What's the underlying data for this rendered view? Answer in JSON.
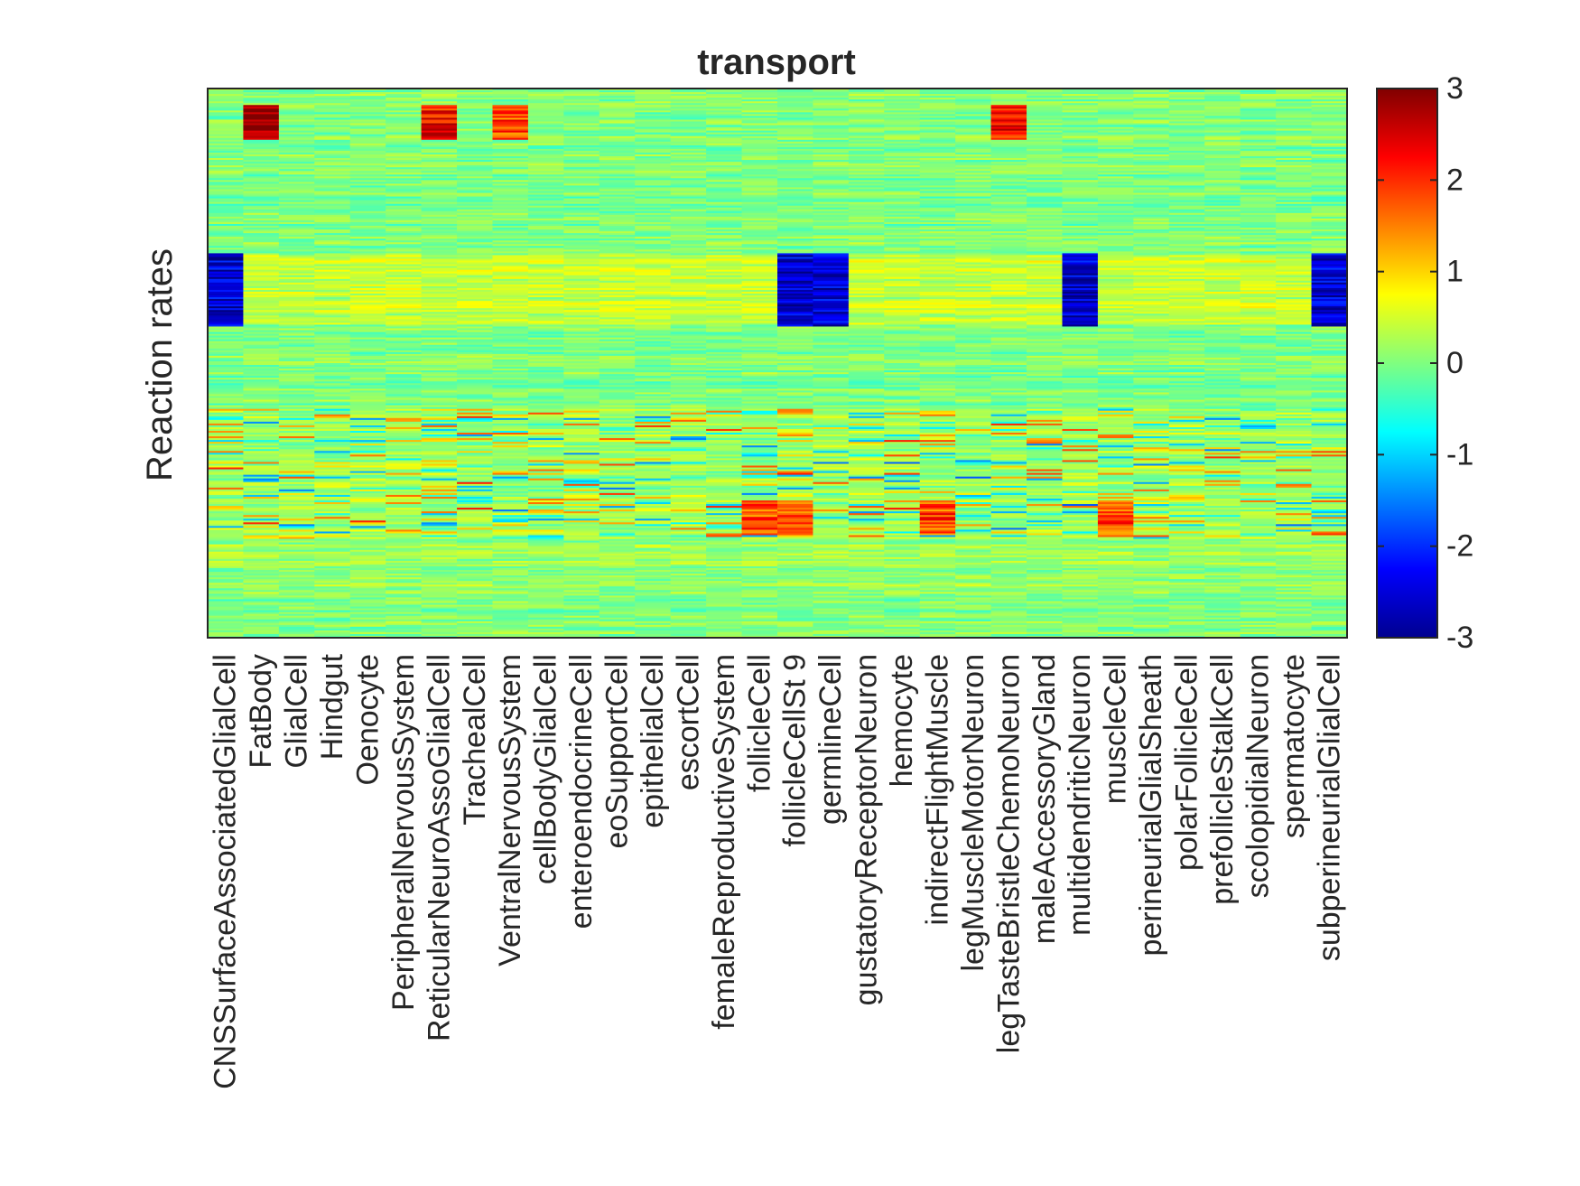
{
  "chart_data": {
    "type": "heatmap",
    "title": "transport",
    "xlabel": "",
    "ylabel": "Reaction rates",
    "categories": [
      "CNSSurfaceAssociatedGlialCell",
      "FatBody",
      "GlialCell",
      "Hindgut",
      "Oenocyte",
      "PeripheralNervousSystem",
      "ReticularNeuroAssoGlialCell",
      "TrachealCell",
      "VentralNervousSystem",
      "cellBodyGlialCell",
      "enteroendocrineCell",
      "eoSupportCell",
      "epithelialCell",
      "escortCell",
      "femaleReproductiveSystem",
      "follicleCell",
      "follicleCellSt 9",
      "germlineCell",
      "gustatoryReceptorNeuron",
      "hemocyte",
      "indirectFlightMuscle",
      "legMuscleMotorNeuron",
      "legTasteBristleChemoNeuron",
      "maleAccessoryGland",
      "multidendriticNeuron",
      "muscleCell",
      "perineurialGlialSheath",
      "polarFollicleCell",
      "prefollicleStalkCell",
      "scolopidialNeuron",
      "spermatocyte",
      "subperineurialGlialCell"
    ],
    "colorbar": {
      "min": -3,
      "max": 3,
      "ticks": [
        "3",
        "2",
        "1",
        "0",
        "-1",
        "-2",
        "-3"
      ],
      "colormap": "jet"
    },
    "clim": [
      -3,
      3
    ],
    "blocks": [
      {
        "rows": [
          0.03,
          0.09
        ],
        "columns": [
          1
        ],
        "value": 3
      },
      {
        "rows": [
          0.03,
          0.09
        ],
        "columns": [
          6,
          22
        ],
        "value": 2.2
      },
      {
        "rows": [
          0.03,
          0.09
        ],
        "columns": [
          8
        ],
        "value": 1.8
      },
      {
        "rows": [
          0.3,
          0.43
        ],
        "columns": [
          0,
          16,
          17,
          24,
          31
        ],
        "value": -2.5
      },
      {
        "rows": [
          0.75,
          0.81
        ],
        "columns": [
          15,
          16,
          20,
          25
        ],
        "value": 1.8
      }
    ],
    "grid": false,
    "legend": "none"
  }
}
